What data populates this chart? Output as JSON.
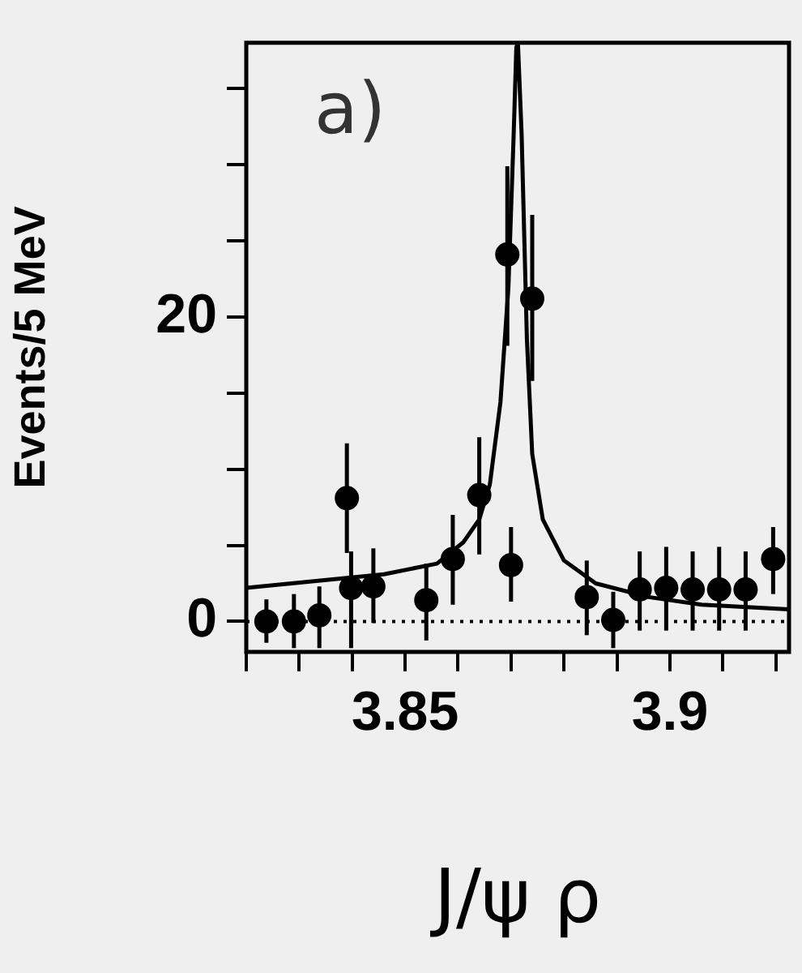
{
  "chart_data": {
    "type": "scatter",
    "xlabel": "J/ψ ρ",
    "ylabel": "Events/5 MeV",
    "annotations": [
      "a)"
    ],
    "xlim": [
      3.82,
      3.9225
    ],
    "ylim": [
      -2,
      38
    ],
    "xticks": [
      {
        "value": 3.82,
        "label": null
      },
      {
        "value": 3.83,
        "label": null
      },
      {
        "value": 3.84,
        "label": null
      },
      {
        "value": 3.85,
        "label": "3.85"
      },
      {
        "value": 3.86,
        "label": null
      },
      {
        "value": 3.87,
        "label": null
      },
      {
        "value": 3.88,
        "label": null
      },
      {
        "value": 3.89,
        "label": null
      },
      {
        "value": 3.9,
        "label": "3.9"
      },
      {
        "value": 3.91,
        "label": null
      },
      {
        "value": 3.92,
        "label": null
      }
    ],
    "yticks": [
      0,
      {
        "value": 5,
        "label": null
      },
      {
        "value": 10,
        "label": null
      },
      {
        "value": 15,
        "label": null
      },
      20,
      {
        "value": 25,
        "label": null
      },
      {
        "value": 30,
        "label": null
      },
      {
        "value": 35,
        "label": null
      }
    ],
    "grid": false,
    "legend": false,
    "marker": "circle",
    "ref_lines": [
      {
        "axis": "y",
        "value": 0,
        "line_style": "dotted",
        "color": "#000000"
      }
    ],
    "series": [
      {
        "color": "#000000",
        "x": [
          3.8238,
          3.829,
          3.8338,
          3.839,
          3.8398,
          3.844,
          3.854,
          3.859,
          3.864,
          3.8693,
          3.87,
          3.874,
          3.8843,
          3.8893,
          3.8943,
          3.8993,
          3.9043,
          3.9093,
          3.9143,
          3.9195
        ],
        "values": [
          0,
          0,
          0.4,
          8.1,
          2.2,
          2.3,
          1.4,
          4.1,
          8.3,
          24.1,
          3.7,
          21.2,
          1.6,
          0.1,
          2.1,
          2.2,
          2.1,
          2.1,
          2.1,
          4.1
        ],
        "errors": [
          [
            -1.4,
            1.45
          ],
          [
            -1.75,
            1.8
          ],
          [
            -1.75,
            2.3
          ],
          [
            4.5,
            11.7
          ],
          [
            -1.75,
            4.6
          ],
          [
            -0.1,
            4.8
          ],
          [
            -1.25,
            3.8
          ],
          [
            1.1,
            7.0
          ],
          [
            4.4,
            12.1
          ],
          [
            18.1,
            29.9
          ],
          [
            1.3,
            6.2
          ],
          [
            15.8,
            26.7
          ],
          [
            -0.9,
            4.0
          ],
          [
            -1.75,
            1.95
          ],
          [
            -0.6,
            4.6
          ],
          [
            -0.6,
            4.9
          ],
          [
            -0.6,
            4.6
          ],
          [
            -0.6,
            4.9
          ],
          [
            -0.6,
            4.6
          ],
          [
            1.8,
            6.2
          ]
        ]
      },
      {
        "type": "line",
        "color": "#000000",
        "marker": "none",
        "x": [
          3.82,
          3.846,
          3.856,
          3.861,
          3.864,
          3.866,
          3.868,
          3.8695,
          3.8705,
          3.871,
          3.8713,
          3.872,
          3.873,
          3.874,
          3.876,
          3.88,
          3.886,
          3.896,
          3.906,
          3.9225
        ],
        "values": [
          2.2,
          3.1,
          3.8,
          5.2,
          6.7,
          9.0,
          14.4,
          21.9,
          32,
          37.7,
          38,
          32,
          18.5,
          11,
          6.7,
          4.0,
          2.5,
          1.6,
          1.1,
          0.8
        ]
      }
    ]
  }
}
